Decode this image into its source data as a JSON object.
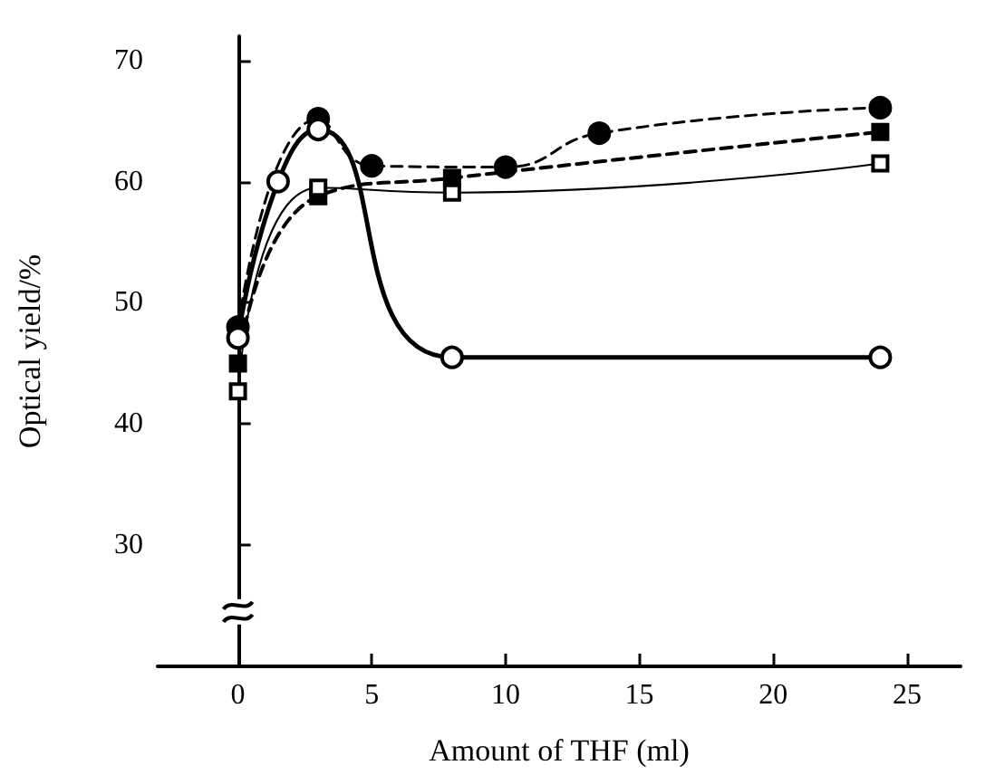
{
  "chart_data": {
    "type": "line",
    "xlabel": "Amount of THF (ml)",
    "ylabel": "Optical yield/%",
    "xlim": [
      -3,
      27
    ],
    "xticks": [
      0,
      5,
      10,
      15,
      20,
      25
    ],
    "ylim": [
      20,
      72
    ],
    "yticks": [
      30,
      40,
      50,
      60,
      70
    ],
    "series": [
      {
        "color": "#000000",
        "marker": "circle",
        "line_style": "dashed",
        "x": [
          0,
          3,
          5,
          10,
          13.5,
          24
        ],
        "values": [
          48.0,
          65.2,
          61.3,
          61.2,
          64.0,
          66.1
        ]
      },
      {
        "color": "#000000",
        "marker": "square",
        "line_style": "dashed",
        "x": [
          0,
          3,
          8,
          24
        ],
        "values": [
          45.0,
          58.8,
          60.3,
          64.1
        ]
      },
      {
        "color": "#000000",
        "marker": "square",
        "line_style": "solid",
        "x": [
          0,
          3,
          8,
          24
        ],
        "values": [
          42.7,
          59.5,
          59.1,
          61.5
        ]
      },
      {
        "color": "#000000",
        "marker": "circle",
        "line_style": "solid",
        "x": [
          0,
          1.5,
          3,
          8,
          24
        ],
        "values": [
          47.1,
          60.0,
          64.3,
          45.5,
          45.5
        ]
      }
    ]
  }
}
